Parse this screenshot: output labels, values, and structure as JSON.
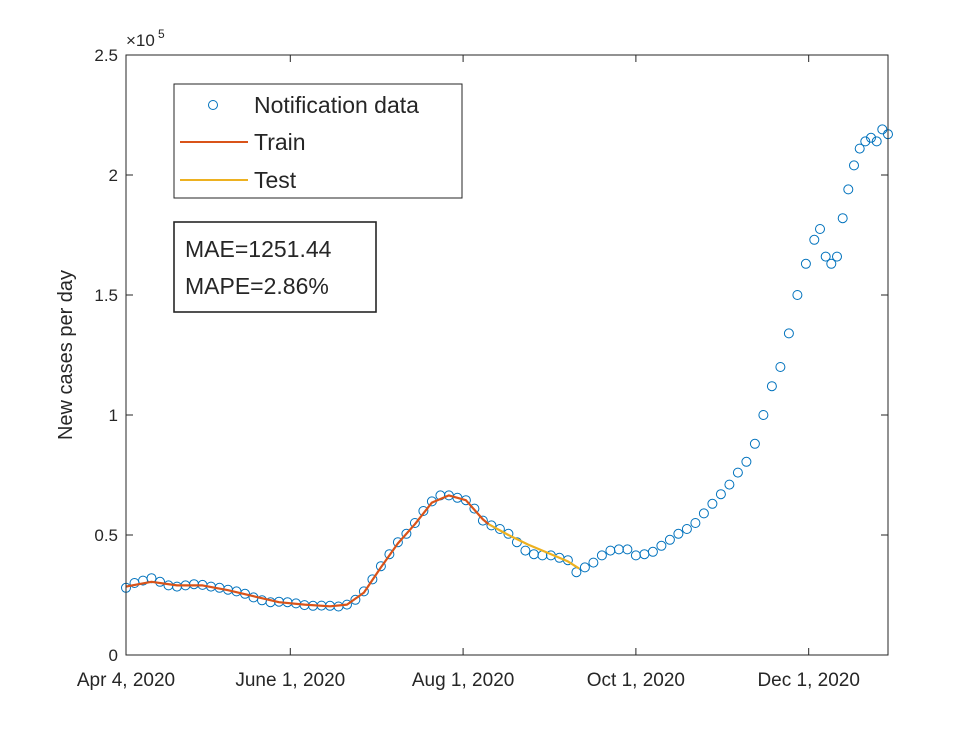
{
  "chart_data": {
    "type": "scatter",
    "title": "",
    "xlabel": "",
    "ylabel": "New cases per day",
    "x_ticks": [
      "Apr 4, 2020",
      "June 1, 2020",
      "Aug 1, 2020",
      "Oct 1, 2020",
      "Dec 1, 2020"
    ],
    "xlim": [
      "2020-04-04",
      "2020-12-17"
    ],
    "y_tick_labels": [
      "0",
      "0.5",
      "1",
      "1.5",
      "2",
      "2.5"
    ],
    "y_exponent_label": "×10",
    "y_exponent_power": "5",
    "ylim": [
      0,
      250000
    ],
    "grid": false,
    "legend_position": "top-left",
    "colors": {
      "notification": "#0072bd",
      "train": "#d95319",
      "test": "#edb120",
      "axes": "#262626"
    },
    "series": [
      {
        "name": "Notification data",
        "style": "markers",
        "points": [
          [
            "2020-04-04",
            28000
          ],
          [
            "2020-04-07",
            30000
          ],
          [
            "2020-04-10",
            31000
          ],
          [
            "2020-04-13",
            32000
          ],
          [
            "2020-04-16",
            30500
          ],
          [
            "2020-04-19",
            29000
          ],
          [
            "2020-04-22",
            28500
          ],
          [
            "2020-04-25",
            29000
          ],
          [
            "2020-04-28",
            29500
          ],
          [
            "2020-05-01",
            29200
          ],
          [
            "2020-05-04",
            28500
          ],
          [
            "2020-05-07",
            28000
          ],
          [
            "2020-05-10",
            27200
          ],
          [
            "2020-05-13",
            26500
          ],
          [
            "2020-05-16",
            25500
          ],
          [
            "2020-05-19",
            24000
          ],
          [
            "2020-05-22",
            22800
          ],
          [
            "2020-05-25",
            22000
          ],
          [
            "2020-05-28",
            22200
          ],
          [
            "2020-05-31",
            22000
          ],
          [
            "2020-06-03",
            21500
          ],
          [
            "2020-06-06",
            20800
          ],
          [
            "2020-06-09",
            20500
          ],
          [
            "2020-06-12",
            20600
          ],
          [
            "2020-06-15",
            20500
          ],
          [
            "2020-06-18",
            20200
          ],
          [
            "2020-06-21",
            21000
          ],
          [
            "2020-06-24",
            23000
          ],
          [
            "2020-06-27",
            26500
          ],
          [
            "2020-06-30",
            31500
          ],
          [
            "2020-07-03",
            37000
          ],
          [
            "2020-07-06",
            42000
          ],
          [
            "2020-07-09",
            47000
          ],
          [
            "2020-07-12",
            50500
          ],
          [
            "2020-07-15",
            55000
          ],
          [
            "2020-07-18",
            60000
          ],
          [
            "2020-07-21",
            64000
          ],
          [
            "2020-07-24",
            66500
          ],
          [
            "2020-07-27",
            66500
          ],
          [
            "2020-07-30",
            65500
          ],
          [
            "2020-08-02",
            64500
          ],
          [
            "2020-08-05",
            61000
          ],
          [
            "2020-08-08",
            56000
          ],
          [
            "2020-08-11",
            54000
          ],
          [
            "2020-08-14",
            52500
          ],
          [
            "2020-08-17",
            50500
          ],
          [
            "2020-08-20",
            47000
          ],
          [
            "2020-08-23",
            43500
          ],
          [
            "2020-08-26",
            42000
          ],
          [
            "2020-08-29",
            41500
          ],
          [
            "2020-09-01",
            41500
          ],
          [
            "2020-09-04",
            40500
          ],
          [
            "2020-09-07",
            39500
          ],
          [
            "2020-09-10",
            34500
          ],
          [
            "2020-09-13",
            36500
          ],
          [
            "2020-09-16",
            38500
          ],
          [
            "2020-09-19",
            41500
          ],
          [
            "2020-09-22",
            43500
          ],
          [
            "2020-09-25",
            44000
          ],
          [
            "2020-09-28",
            44000
          ],
          [
            "2020-10-01",
            41500
          ],
          [
            "2020-10-04",
            42000
          ],
          [
            "2020-10-07",
            43000
          ],
          [
            "2020-10-10",
            45500
          ],
          [
            "2020-10-13",
            48000
          ],
          [
            "2020-10-16",
            50500
          ],
          [
            "2020-10-19",
            52500
          ],
          [
            "2020-10-22",
            55000
          ],
          [
            "2020-10-25",
            59000
          ],
          [
            "2020-10-28",
            63000
          ],
          [
            "2020-10-31",
            67000
          ],
          [
            "2020-11-03",
            71000
          ],
          [
            "2020-11-06",
            76000
          ],
          [
            "2020-11-09",
            80500
          ],
          [
            "2020-11-12",
            88000
          ],
          [
            "2020-11-15",
            100000
          ],
          [
            "2020-11-18",
            112000
          ],
          [
            "2020-11-21",
            120000
          ],
          [
            "2020-11-24",
            134000
          ],
          [
            "2020-11-27",
            150000
          ],
          [
            "2020-11-30",
            163000
          ],
          [
            "2020-12-03",
            173000
          ],
          [
            "2020-12-05",
            177500
          ],
          [
            "2020-12-07",
            166000
          ],
          [
            "2020-12-09",
            163000
          ],
          [
            "2020-12-11",
            166000
          ],
          [
            "2020-12-13",
            182000
          ],
          [
            "2020-12-15",
            194000
          ],
          [
            "2020-12-17",
            204000
          ],
          [
            "2020-12-19",
            211000
          ],
          [
            "2020-12-21",
            214000
          ],
          [
            "2020-12-23",
            215500
          ],
          [
            "2020-12-25",
            214000
          ],
          [
            "2020-12-27",
            219000
          ],
          [
            "2020-12-29",
            217000
          ]
        ]
      },
      {
        "name": "Train",
        "style": "line",
        "points": [
          [
            "2020-04-04",
            28500
          ],
          [
            "2020-04-13",
            30500
          ],
          [
            "2020-04-22",
            29000
          ],
          [
            "2020-05-01",
            29000
          ],
          [
            "2020-05-10",
            27000
          ],
          [
            "2020-05-19",
            24500
          ],
          [
            "2020-05-28",
            22000
          ],
          [
            "2020-06-06",
            21000
          ],
          [
            "2020-06-15",
            20300
          ],
          [
            "2020-06-21",
            21000
          ],
          [
            "2020-06-27",
            26000
          ],
          [
            "2020-07-03",
            36500
          ],
          [
            "2020-07-09",
            46500
          ],
          [
            "2020-07-15",
            54500
          ],
          [
            "2020-07-21",
            63500
          ],
          [
            "2020-07-27",
            66500
          ],
          [
            "2020-08-02",
            64500
          ],
          [
            "2020-08-08",
            56500
          ],
          [
            "2020-08-10",
            54500
          ]
        ]
      },
      {
        "name": "Test",
        "style": "line",
        "points": [
          [
            "2020-08-10",
            54500
          ],
          [
            "2020-08-17",
            50000
          ],
          [
            "2020-08-24",
            46000
          ],
          [
            "2020-08-31",
            42500
          ],
          [
            "2020-09-07",
            39000
          ],
          [
            "2020-09-11",
            36000
          ]
        ]
      }
    ],
    "annotations": [
      "MAE=1251.44",
      "MAPE=2.86%"
    ]
  }
}
